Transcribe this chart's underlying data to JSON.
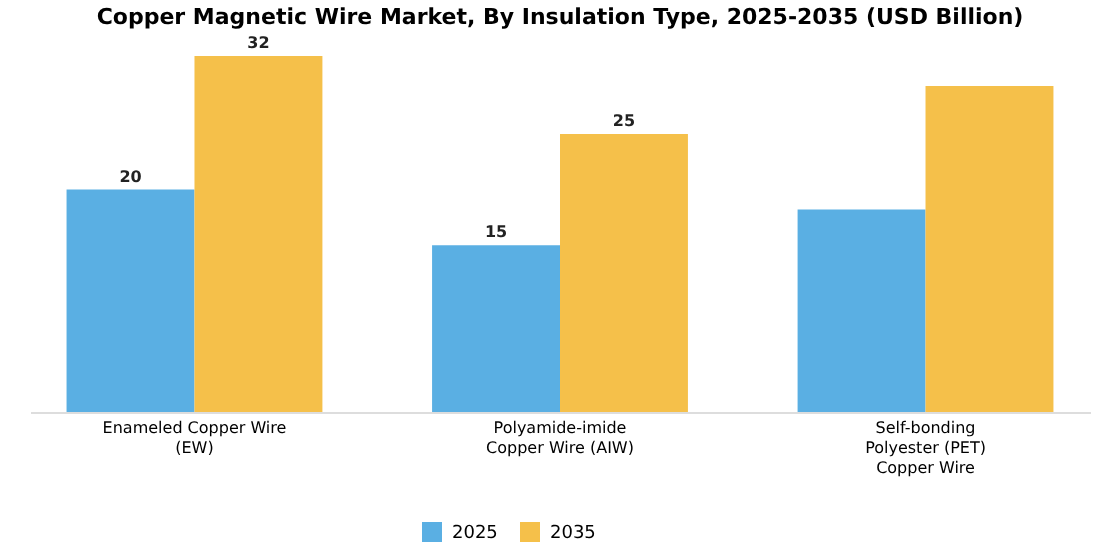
{
  "chart_data": {
    "type": "bar",
    "title": "Copper Magnetic Wire Market, By Insulation Type, 2025-2035 (USD Billion)",
    "categories": [
      "Enameled Copper Wire (EW)",
      "Polyamide-imide Copper Wire (AIW)",
      "Self-bonding Polyester (PET) Copper Wire"
    ],
    "series": [
      {
        "name": "2025",
        "color": "#5aafe3",
        "values": [
          20,
          15,
          18.2
        ],
        "value_labels": [
          "20",
          "15",
          null
        ]
      },
      {
        "name": "2035",
        "color": "#f5c04a",
        "values": [
          32,
          25,
          29.3
        ],
        "value_labels": [
          "32",
          "25",
          null
        ]
      }
    ],
    "legend": "bottom",
    "grid": false
  }
}
